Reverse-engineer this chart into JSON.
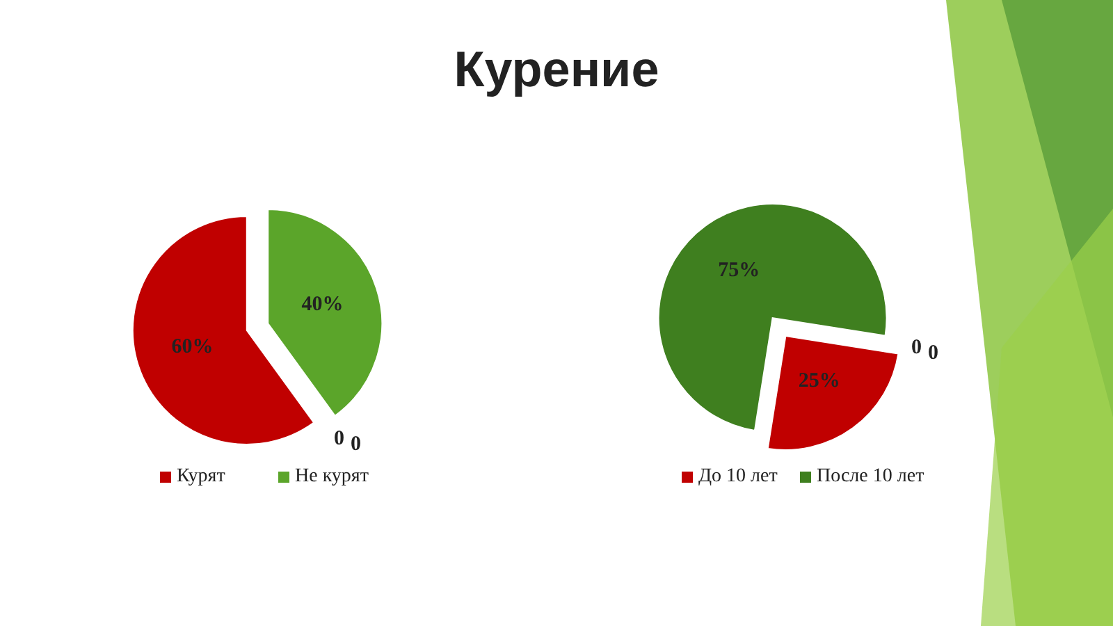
{
  "chart_data": [
    {
      "type": "pie",
      "title": "Курение",
      "categories": [
        "Курят",
        "Не курят",
        null,
        null
      ],
      "values": [
        60,
        40,
        0,
        0
      ],
      "colors": [
        "#c00000",
        "#5ba52a",
        null,
        null
      ],
      "value_labels": [
        "60%",
        "40%",
        "0",
        "0"
      ],
      "legend": "bottom"
    },
    {
      "type": "pie",
      "categories": [
        "До 10 лет",
        "После 10 лет",
        null,
        null
      ],
      "values": [
        25,
        75,
        0,
        0
      ],
      "colors": [
        "#c00000",
        "#3f7f1f",
        null,
        null
      ],
      "value_labels": [
        "25%",
        "75%",
        "0",
        "0"
      ],
      "legend": "bottom"
    }
  ]
}
